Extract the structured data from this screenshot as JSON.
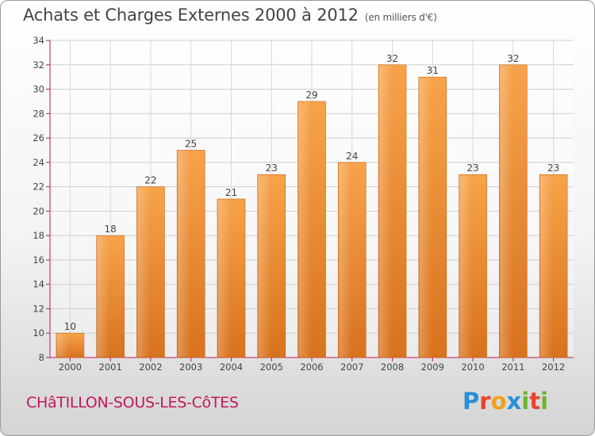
{
  "header": {
    "title": "Achats et Charges Externes 2000 à 2012",
    "subtitle": "(en milliers d'€)"
  },
  "footer": {
    "town": "CHâTILLON-SOUS-LES-CôTES",
    "logo": {
      "letters": [
        "P",
        "r",
        "o",
        "x",
        "i",
        "t",
        "i"
      ],
      "colors": [
        "#2a8fd6",
        "#e8442b",
        "#f0a21a",
        "#2a8fd6",
        "#6ab42d",
        "#e8442b",
        "#6ab42d"
      ]
    }
  },
  "chart_data": {
    "type": "bar",
    "title": "Achats et Charges Externes 2000 à 2012",
    "subtitle": "(en milliers d'€)",
    "categories": [
      "2000",
      "2001",
      "2002",
      "2003",
      "2004",
      "2005",
      "2006",
      "2007",
      "2008",
      "2009",
      "2010",
      "2011",
      "2012"
    ],
    "values": [
      10,
      18,
      22,
      25,
      21,
      23,
      29,
      24,
      32,
      31,
      23,
      32,
      23
    ],
    "ylim": [
      8,
      34
    ],
    "yticks": [
      8,
      10,
      12,
      14,
      16,
      18,
      20,
      22,
      24,
      26,
      28,
      30,
      32,
      34
    ],
    "grid": true,
    "bar_color": "#f39a3c",
    "axis_color": "#c2185b"
  }
}
